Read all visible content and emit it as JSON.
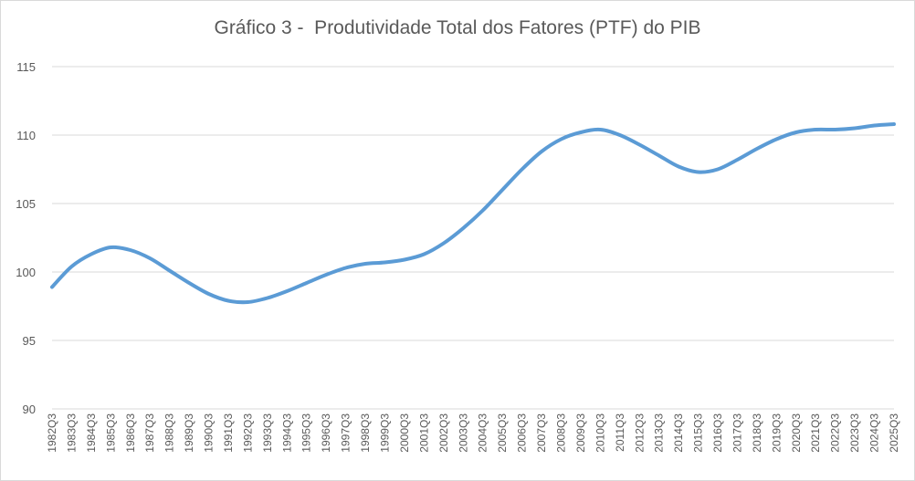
{
  "chart_data": {
    "type": "line",
    "title": "Gráfico 3 -  Produtividade Total dos Fatores (PTF) do PIB",
    "xlabel": "",
    "ylabel": "",
    "ylim": [
      90,
      115
    ],
    "yticks": [
      90,
      95,
      100,
      105,
      110,
      115
    ],
    "grid": "horizontal",
    "legend": "none",
    "colors": {
      "line": "#5B9BD5",
      "grid": "#d9d9d9",
      "text": "#595959"
    },
    "x_tick_labels": [
      "1982Q3",
      "1983Q3",
      "1984Q3",
      "1985Q3",
      "1986Q3",
      "1987Q3",
      "1988Q3",
      "1989Q3",
      "1990Q3",
      "1991Q3",
      "1992Q3",
      "1993Q3",
      "1994Q3",
      "1995Q3",
      "1996Q3",
      "1997Q3",
      "1998Q3",
      "1999Q3",
      "2000Q3",
      "2001Q3",
      "2002Q3",
      "2003Q3",
      "2004Q3",
      "2005Q3",
      "2006Q3",
      "2007Q3",
      "2008Q3",
      "2009Q3",
      "2010Q3",
      "2011Q3",
      "2012Q3",
      "2013Q3",
      "2014Q3",
      "2015Q3",
      "2016Q3",
      "2017Q3",
      "2018Q3",
      "2019Q3",
      "2020Q3",
      "2021Q3",
      "2022Q3",
      "2023Q3",
      "2024Q3",
      "2025Q3"
    ],
    "series": [
      {
        "x": [
          "1982Q3",
          "1983Q3",
          "1984Q3",
          "1985Q3",
          "1986Q3",
          "1987Q3",
          "1988Q3",
          "1989Q3",
          "1990Q3",
          "1991Q3",
          "1992Q3",
          "1993Q3",
          "1994Q3",
          "1995Q3",
          "1996Q3",
          "1997Q3",
          "1998Q3",
          "1999Q3",
          "2000Q3",
          "2001Q3",
          "2002Q3",
          "2003Q3",
          "2004Q3",
          "2005Q3",
          "2006Q3",
          "2007Q3",
          "2008Q3",
          "2009Q3",
          "2010Q3",
          "2011Q3",
          "2012Q3",
          "2013Q3",
          "2014Q3",
          "2015Q3",
          "2016Q3",
          "2017Q3",
          "2018Q3",
          "2019Q3",
          "2020Q3",
          "2021Q3",
          "2022Q3",
          "2023Q3",
          "2024Q3",
          "2025Q3"
        ],
        "values": [
          98.9,
          100.4,
          101.3,
          101.8,
          101.6,
          101.0,
          100.1,
          99.2,
          98.4,
          97.9,
          97.8,
          98.1,
          98.6,
          99.2,
          99.8,
          100.3,
          100.6,
          100.7,
          100.9,
          101.3,
          102.1,
          103.2,
          104.5,
          106.0,
          107.5,
          108.8,
          109.7,
          110.2,
          110.4,
          110.0,
          109.3,
          108.5,
          107.7,
          107.3,
          107.5,
          108.2,
          109.0,
          109.7,
          110.2,
          110.4,
          110.4,
          110.5,
          110.7,
          110.8
        ]
      }
    ]
  }
}
